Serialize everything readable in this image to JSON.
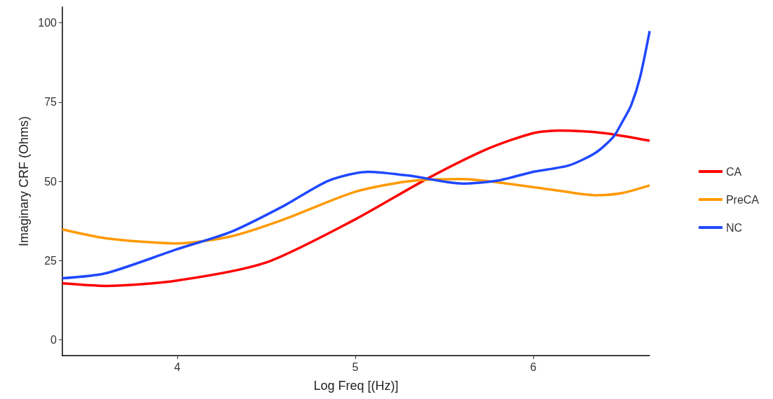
{
  "chart_data": {
    "type": "line",
    "xlabel": "Log Freq [(Hz)]",
    "ylabel": "Imaginary CRF (Ohms)",
    "xlim": [
      3.354,
      6.654
    ],
    "xticks": [
      4,
      5,
      6
    ],
    "ylim": [
      -5,
      105
    ],
    "yticks": [
      0,
      25,
      50,
      75,
      100
    ],
    "grid": false,
    "legend": "right",
    "marker": "none",
    "line_style": "solid",
    "series": [
      {
        "name": "CA",
        "color": "#ff0000",
        "x": [
          3.354,
          3.6,
          4.0,
          4.5,
          5.0,
          5.4,
          5.75,
          6.0,
          6.15,
          6.4,
          6.654
        ],
        "values": [
          17.8,
          17,
          18.7,
          24.4,
          38,
          50.7,
          60.4,
          65.2,
          66,
          65.2,
          62.8
        ]
      },
      {
        "name": "PreCA",
        "color": "#ff9900",
        "x": [
          3.354,
          3.6,
          4.0,
          4.3,
          4.6,
          5.0,
          5.3,
          5.6,
          5.85,
          6.1,
          6.35,
          6.5,
          6.654
        ],
        "values": [
          34.8,
          32,
          30.4,
          32.6,
          38,
          46.7,
          50,
          50.7,
          49.3,
          47.4,
          45.6,
          46.3,
          48.7
        ]
      },
      {
        "name": "NC",
        "color": "#1f48ff",
        "x": [
          3.354,
          3.6,
          4.0,
          4.3,
          4.6,
          4.85,
          5.07,
          5.3,
          5.6,
          5.8,
          6.0,
          6.2,
          6.35,
          6.45,
          6.5,
          6.55,
          6.6,
          6.654
        ],
        "values": [
          19.4,
          21,
          28.6,
          34,
          42.3,
          50.2,
          53,
          51.8,
          49.3,
          50.2,
          53,
          55,
          59,
          64,
          68.7,
          74,
          82.8,
          97.4
        ]
      }
    ]
  }
}
